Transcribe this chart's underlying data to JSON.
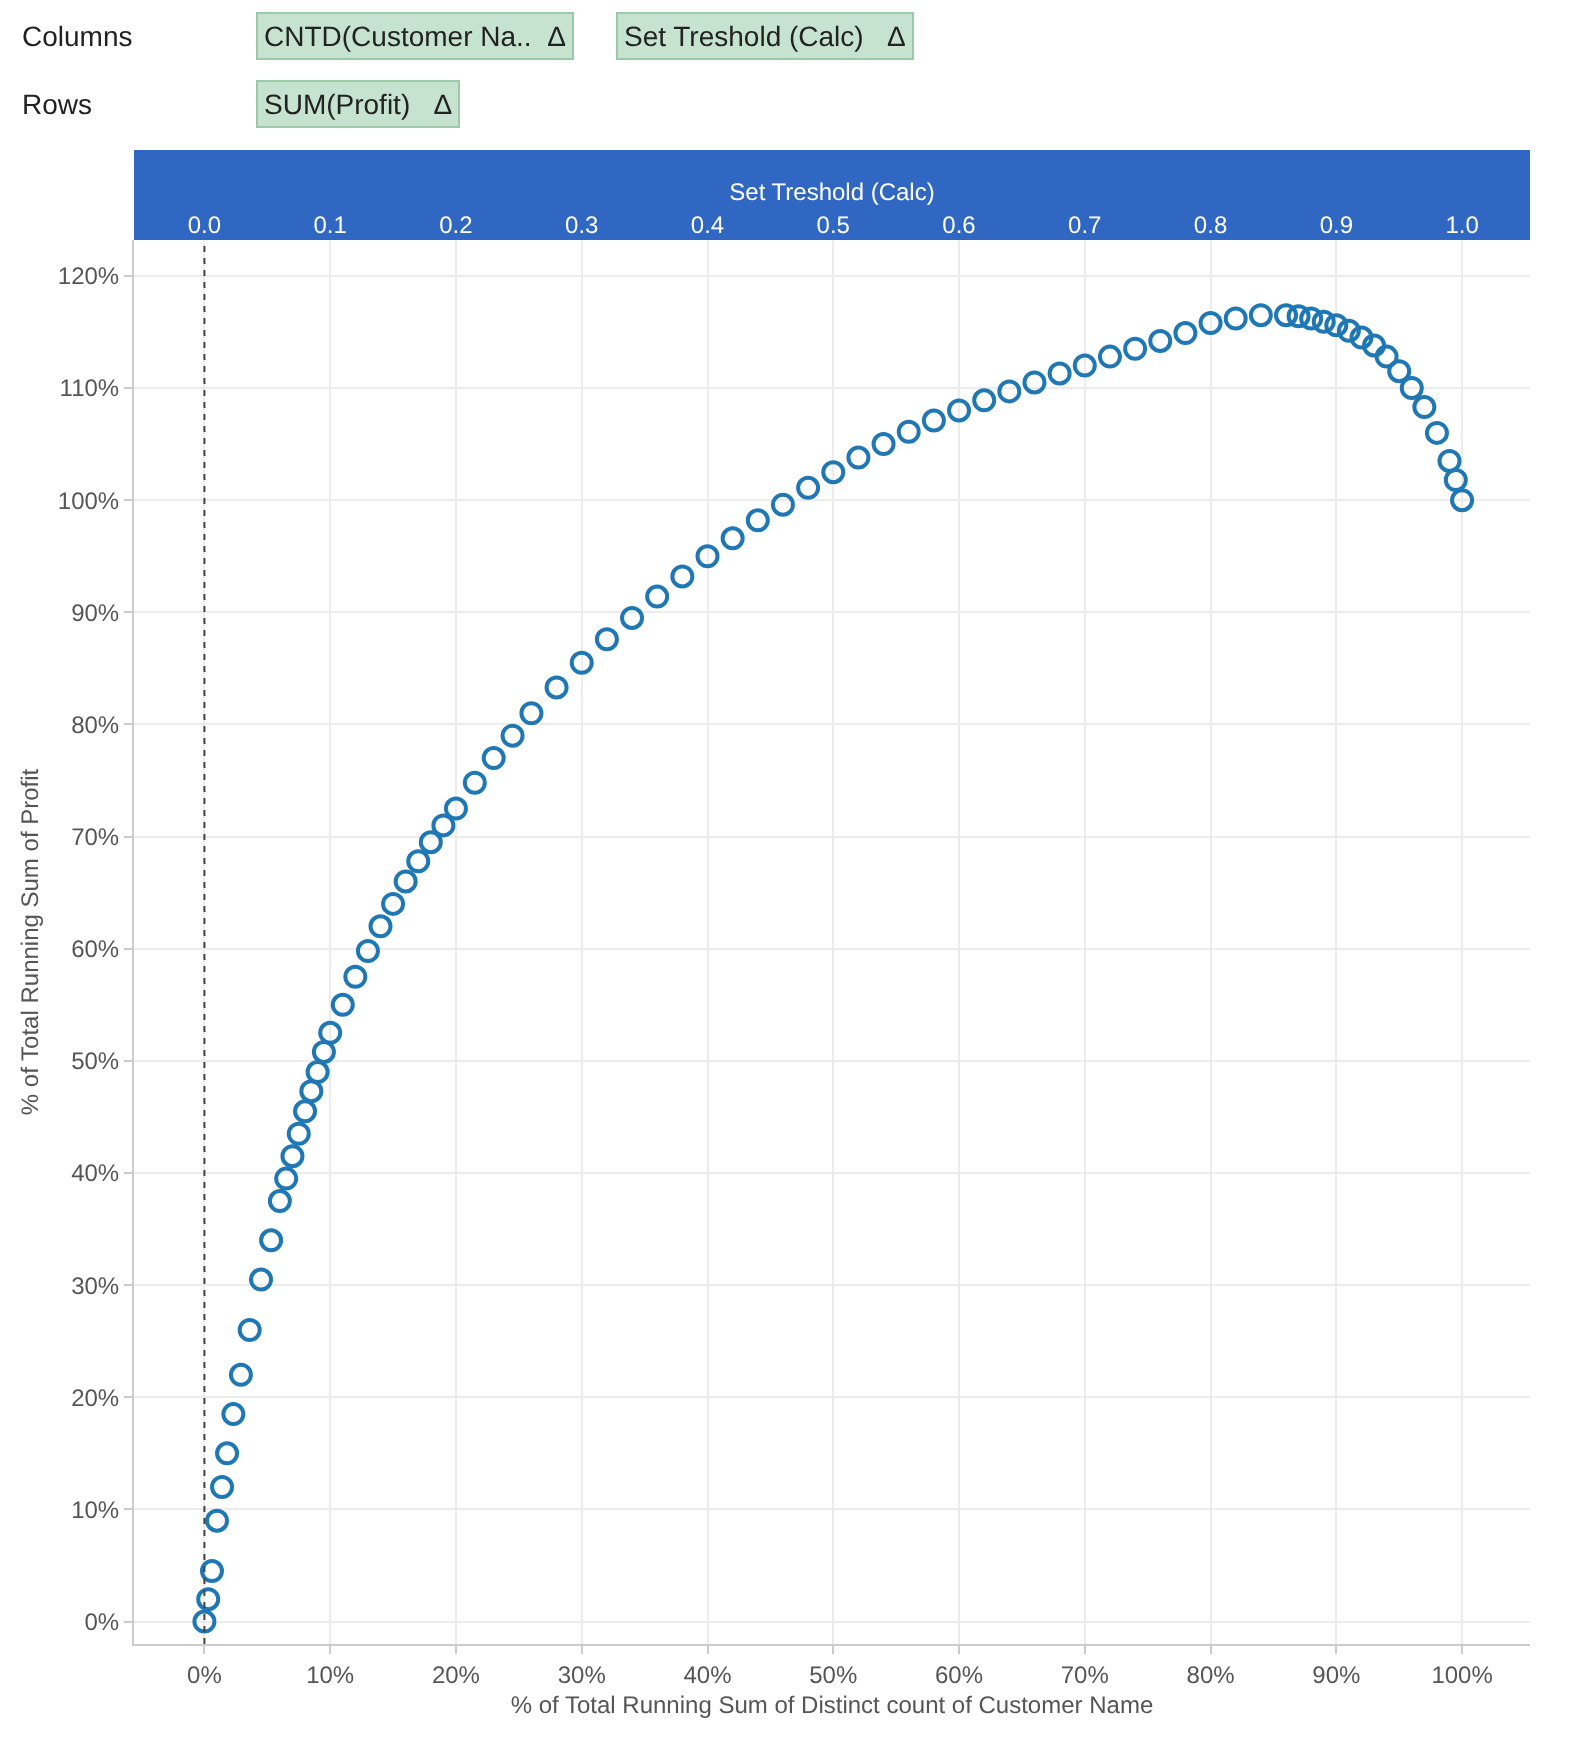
{
  "chart_data": {
    "type": "scatter",
    "xlabel": "% of Total Running Sum of Distinct count of Customer Name",
    "ylabel": "% of Total Running Sum of Profit",
    "x2label": "Set Treshold (Calc)",
    "annotations": [
      "Columns",
      "CNTD(Customer Na..  Δ",
      "Set Treshold (Calc)   Δ",
      "Rows",
      "SUM(Profit)   Δ"
    ],
    "x": [
      0,
      0.3,
      0.6,
      1,
      1.4,
      1.8,
      2.3,
      2.9,
      3.6,
      4.5,
      5.3,
      6,
      6.5,
      7,
      7.5,
      8,
      8.5,
      9,
      9.5,
      10,
      11,
      12,
      13,
      14,
      15,
      16,
      17,
      18,
      19,
      20,
      21.5,
      23,
      24.5,
      26,
      28,
      30,
      32,
      34,
      36,
      38,
      40,
      42,
      44,
      46,
      48,
      50,
      52,
      54,
      56,
      58,
      60,
      62,
      64,
      66,
      68,
      70,
      72,
      74,
      76,
      78,
      80,
      82,
      84,
      86,
      87,
      88,
      89,
      90,
      91,
      92,
      93,
      94,
      95,
      96,
      97,
      98,
      99,
      99.5,
      100
    ],
    "series": [
      {
        "color": "#1f77b4",
        "values": [
          0,
          2,
          4.5,
          9,
          12,
          15,
          18.5,
          22,
          26,
          30.5,
          34,
          37.5,
          39.5,
          41.5,
          43.5,
          45.5,
          47.3,
          49,
          50.8,
          52.5,
          55,
          57.5,
          59.8,
          62,
          64,
          66,
          67.8,
          69.5,
          71,
          72.5,
          74.8,
          77,
          79,
          81,
          83.3,
          85.5,
          87.6,
          89.5,
          91.4,
          93.2,
          95,
          96.6,
          98.2,
          99.6,
          101.1,
          102.5,
          103.8,
          105,
          106.1,
          107.1,
          108,
          108.9,
          109.7,
          110.5,
          111.3,
          112,
          112.8,
          113.5,
          114.2,
          114.9,
          115.8,
          116.2,
          116.5,
          116.5,
          116.4,
          116.2,
          115.9,
          115.6,
          115.1,
          114.5,
          113.8,
          112.8,
          111.5,
          110,
          108.3,
          106,
          103.5,
          101.8,
          100
        ]
      }
    ],
    "xlim": [
      -5.6,
      105.4
    ],
    "xticks": [
      {
        "value": 0,
        "label": "0%"
      },
      {
        "value": 10,
        "label": "10%"
      },
      {
        "value": 20,
        "label": "20%"
      },
      {
        "value": 30,
        "label": "30%"
      },
      {
        "value": 40,
        "label": "40%"
      },
      {
        "value": 50,
        "label": "50%"
      },
      {
        "value": 60,
        "label": "60%"
      },
      {
        "value": 70,
        "label": "70%"
      },
      {
        "value": 80,
        "label": "80%"
      },
      {
        "value": 90,
        "label": "90%"
      },
      {
        "value": 100,
        "label": "100%"
      }
    ],
    "x2lim": [
      -0.056,
      1.054
    ],
    "x2ticks": [
      {
        "value": 0,
        "label": "0.0"
      },
      {
        "value": 0.1,
        "label": "0.1"
      },
      {
        "value": 0.2,
        "label": "0.2"
      },
      {
        "value": 0.3,
        "label": "0.3"
      },
      {
        "value": 0.4,
        "label": "0.4"
      },
      {
        "value": 0.5,
        "label": "0.5"
      },
      {
        "value": 0.6,
        "label": "0.6"
      },
      {
        "value": 0.7,
        "label": "0.7"
      },
      {
        "value": 0.8,
        "label": "0.8"
      },
      {
        "value": 0.9,
        "label": "0.9"
      },
      {
        "value": 1,
        "label": "1.0"
      }
    ],
    "ylim": [
      -2,
      123.2
    ],
    "yticks": [
      {
        "value": 0,
        "label": "0%"
      },
      {
        "value": 10,
        "label": "10%"
      },
      {
        "value": 20,
        "label": "20%"
      },
      {
        "value": 30,
        "label": "30%"
      },
      {
        "value": 40,
        "label": "40%"
      },
      {
        "value": 50,
        "label": "50%"
      },
      {
        "value": 60,
        "label": "60%"
      },
      {
        "value": 70,
        "label": "70%"
      },
      {
        "value": 80,
        "label": "80%"
      },
      {
        "value": 90,
        "label": "90%"
      },
      {
        "value": 100,
        "label": "100%"
      },
      {
        "value": 110,
        "label": "110%"
      },
      {
        "value": 120,
        "label": "120%"
      }
    ],
    "ref_lines": [
      {
        "axis": "x",
        "value": 0,
        "color": "#444444",
        "line_style": "dotted"
      }
    ],
    "grid": true,
    "marker": "circle"
  }
}
